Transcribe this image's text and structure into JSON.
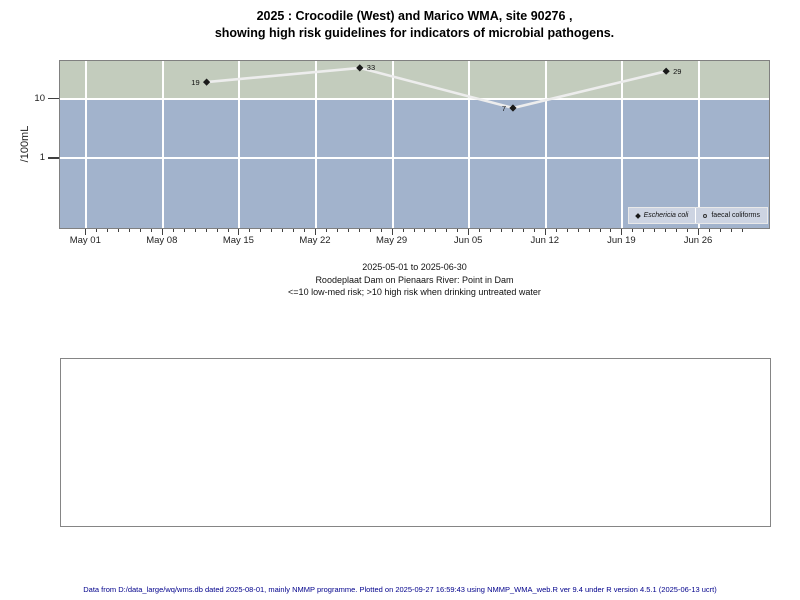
{
  "title": {
    "line1": "2025 : Crocodile (West) and Marico WMA, site 90276 ,",
    "line2": "showing high risk guidelines for indicators of microbial pathogens."
  },
  "chart_data": {
    "type": "line",
    "y_scale": "log",
    "ylabel": "/100mL",
    "xlabel": "",
    "grid": true,
    "xlim": [
      "2025-05-01",
      "2025-06-30"
    ],
    "x_pad_frac": 0.04,
    "ylim": [
      0.068,
      43
    ],
    "x_ticks": [
      {
        "label": "May 01",
        "date": "2025-05-01"
      },
      {
        "label": "May 08",
        "date": "2025-05-08"
      },
      {
        "label": "May 15",
        "date": "2025-05-15"
      },
      {
        "label": "May 22",
        "date": "2025-05-22"
      },
      {
        "label": "May 29",
        "date": "2025-05-29"
      },
      {
        "label": "Jun 05",
        "date": "2025-06-05"
      },
      {
        "label": "Jun 12",
        "date": "2025-06-12"
      },
      {
        "label": "Jun 19",
        "date": "2025-06-19"
      },
      {
        "label": "Jun 26",
        "date": "2025-06-26"
      }
    ],
    "y_ticks": [
      {
        "label": "10",
        "value": 10
      },
      {
        "label": "1",
        "value": 1
      }
    ],
    "bands": [
      {
        "name": "high-risk-band",
        "from": 10,
        "to": 43,
        "color": "#c3ccbd"
      },
      {
        "name": "low-med-risk-band",
        "from": 0.068,
        "to": 10,
        "color": "#a2b3cc"
      }
    ],
    "series": [
      {
        "name": "Eschericia coli",
        "marker": "diamond",
        "line_color": "#ededed",
        "marker_color": "#1a1a1a",
        "points": [
          {
            "date": "2025-05-12",
            "value": 19,
            "label": "19",
            "label_side": "left"
          },
          {
            "date": "2025-05-26",
            "value": 33,
            "label": "33",
            "label_side": "right"
          },
          {
            "date": "2025-06-09",
            "value": 7,
            "label": "7",
            "label_side": "left"
          },
          {
            "date": "2025-06-23",
            "value": 29,
            "label": "29",
            "label_side": "right"
          }
        ]
      },
      {
        "name": "faecal coliforms",
        "marker": "open-circle",
        "points": []
      }
    ],
    "legend": {
      "position": "bottom-right",
      "entries": [
        {
          "label": "Eschericia coli",
          "marker": "diamond",
          "italic": true
        },
        {
          "label": "faecal coliforms",
          "marker": "open-circle",
          "italic": false
        }
      ]
    }
  },
  "captions": {
    "date_range": "2025-05-01 to 2025-06-30",
    "site": "Roodeplaat Dam on Pienaars River: Point in Dam",
    "risk_note": "<=10 low-med risk; >10 high risk when drinking untreated water"
  },
  "footer": {
    "text": "Data from D:/data_large/wq/wms.db dated 2025-08-01, mainly NMMP programme. Plotted on 2025-09-27 16:59:43 using NMMP_WMA_web.R ver 9.4 under R version 4.5.1 (2025-06-13 ucrt)"
  }
}
